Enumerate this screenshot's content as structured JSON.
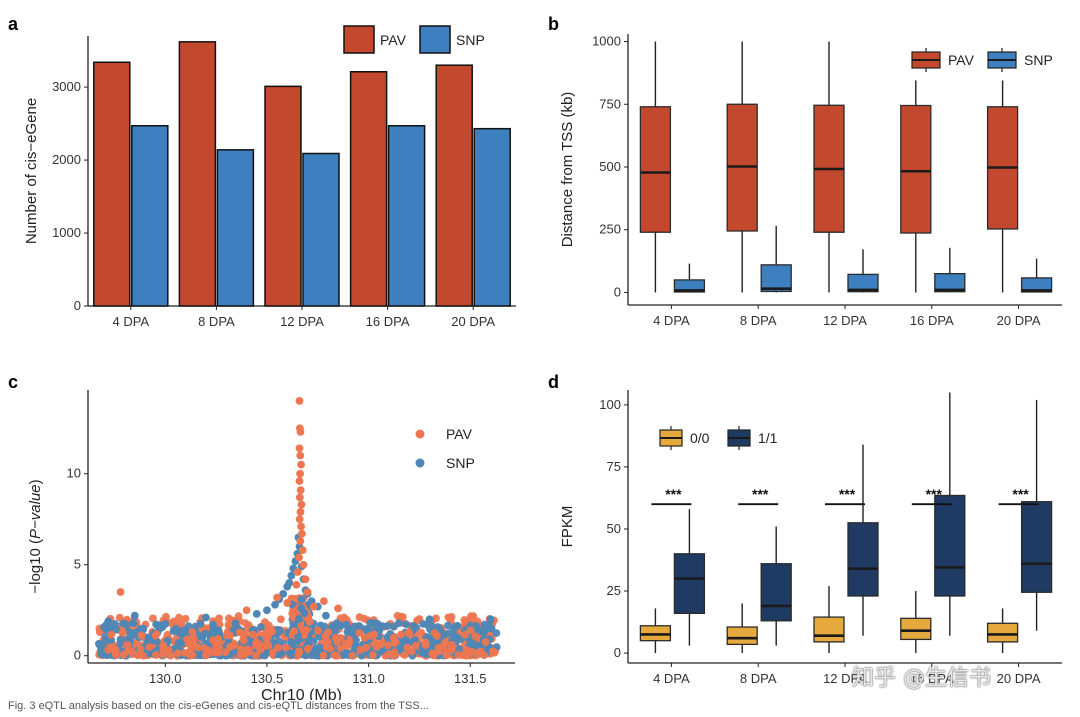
{
  "figure_caption": "Fig. 3  eQTL analysis based on the cis-eGenes and cis-eQTL distances from the TSS...",
  "watermark": "知乎 @生信书",
  "colors": {
    "pav": "#C2492E",
    "snp": "#3E7FBF",
    "genotype_00": "#E5A93D",
    "genotype_11": "#1F3A63",
    "pav_dot": "#EE7650",
    "snp_dot": "#4E86B5"
  },
  "chart_data": [
    {
      "panel": "a",
      "type": "bar",
      "categories": [
        "4 DPA",
        "8 DPA",
        "12 DPA",
        "16 DPA",
        "20 DPA"
      ],
      "series": [
        {
          "name": "PAV",
          "values": [
            3340,
            3620,
            3010,
            3210,
            3300
          ]
        },
        {
          "name": "SNP",
          "values": [
            2470,
            2140,
            2090,
            2470,
            2430
          ]
        }
      ],
      "xlabel": "",
      "ylabel": "Number of cis−eGene",
      "ylim": [
        0,
        3700
      ],
      "yticks": [
        0,
        1000,
        2000,
        3000
      ],
      "legend": "top-right"
    },
    {
      "panel": "b",
      "type": "box",
      "categories": [
        "4 DPA",
        "8 DPA",
        "12 DPA",
        "16 DPA",
        "20 DPA"
      ],
      "series": [
        {
          "name": "PAV",
          "boxes": [
            {
              "min": 0,
              "q1": 240,
              "median": 478,
              "q3": 740,
              "max": 1000
            },
            {
              "min": 0,
              "q1": 245,
              "median": 502,
              "q3": 750,
              "max": 1000
            },
            {
              "min": 0,
              "q1": 240,
              "median": 492,
              "q3": 746,
              "max": 1000
            },
            {
              "min": 0,
              "q1": 237,
              "median": 483,
              "q3": 745,
              "max": 845
            },
            {
              "min": 0,
              "q1": 253,
              "median": 498,
              "q3": 740,
              "max": 845
            }
          ]
        },
        {
          "name": "SNP",
          "boxes": [
            {
              "min": 0,
              "q1": 2,
              "median": 8,
              "q3": 50,
              "max": 115
            },
            {
              "min": 0,
              "q1": 4,
              "median": 15,
              "q3": 110,
              "max": 265
            },
            {
              "min": 0,
              "q1": 3,
              "median": 10,
              "q3": 72,
              "max": 172
            },
            {
              "min": 0,
              "q1": 3,
              "median": 10,
              "q3": 75,
              "max": 178
            },
            {
              "min": 0,
              "q1": 2,
              "median": 8,
              "q3": 58,
              "max": 135
            }
          ]
        }
      ],
      "ylabel": "Distance from TSS (kb)",
      "ylim": [
        -50,
        1030
      ],
      "yticks": [
        0,
        250,
        500,
        750,
        1000
      ],
      "legend": "top-right"
    },
    {
      "panel": "c",
      "type": "scatter",
      "xlabel": "Chr10 (Mb)",
      "ylabel_main": "−log10 (",
      "ylabel_italic": "P−value",
      "ylabel_end": ")",
      "xlim": [
        129.62,
        131.72
      ],
      "ylim": [
        -0.4,
        14.6
      ],
      "xticks": [
        130.0,
        130.5,
        131.0,
        131.5
      ],
      "yticks": [
        0,
        5,
        10
      ],
      "series": [
        {
          "name": "PAV",
          "note": "background cloud spans 129.65–131.65 Mb at −log10 P ≈ 0–2.2",
          "peak_points": [
            [
              130.66,
              14.0
            ],
            [
              130.662,
              12.5
            ],
            [
              130.665,
              12.3
            ],
            [
              130.66,
              11.4
            ],
            [
              130.664,
              11.0
            ],
            [
              130.668,
              10.5
            ],
            [
              130.663,
              10.0
            ],
            [
              130.66,
              9.6
            ],
            [
              130.666,
              9.1
            ],
            [
              130.662,
              8.7
            ],
            [
              130.67,
              8.3
            ],
            [
              130.665,
              7.9
            ],
            [
              130.661,
              7.5
            ],
            [
              130.668,
              7.1
            ],
            [
              130.672,
              6.7
            ],
            [
              130.664,
              6.3
            ],
            [
              130.676,
              5.8
            ],
            [
              130.658,
              5.4
            ],
            [
              130.68,
              5.0
            ],
            [
              130.652,
              4.6
            ],
            [
              130.69,
              4.2
            ],
            [
              130.645,
              3.9
            ],
            [
              130.7,
              3.5
            ],
            [
              130.78,
              3.0
            ],
            [
              129.78,
              3.5
            ],
            [
              130.55,
              3.2
            ],
            [
              130.6,
              2.9
            ],
            [
              130.73,
              2.7
            ],
            [
              130.85,
              2.6
            ],
            [
              130.4,
              2.5
            ]
          ]
        },
        {
          "name": "SNP",
          "note": "background cloud spans 129.65–131.65 Mb at −log10 P ≈ 0–1.8",
          "peak_points": [
            [
              130.655,
              6.5
            ],
            [
              130.66,
              6.0
            ],
            [
              130.65,
              5.6
            ],
            [
              130.64,
              5.2
            ],
            [
              130.63,
              4.8
            ],
            [
              130.67,
              4.9
            ],
            [
              130.62,
              4.4
            ],
            [
              130.68,
              4.2
            ],
            [
              130.61,
              4.0
            ],
            [
              130.6,
              3.8
            ],
            [
              130.69,
              3.6
            ],
            [
              130.58,
              3.4
            ],
            [
              130.7,
              3.4
            ],
            [
              130.56,
              3.1
            ],
            [
              130.72,
              3.0
            ],
            [
              130.54,
              2.8
            ],
            [
              130.75,
              2.7
            ],
            [
              130.5,
              2.5
            ],
            [
              130.45,
              2.3
            ],
            [
              130.79,
              2.2
            ],
            [
              129.85,
              2.2
            ],
            [
              131.6,
              2.0
            ],
            [
              131.3,
              2.0
            ],
            [
              130.2,
              2.1
            ],
            [
              129.72,
              1.9
            ]
          ]
        }
      ],
      "legend": "top-right"
    },
    {
      "panel": "d",
      "type": "box",
      "categories": [
        "4 DPA",
        "8 DPA",
        "12 DPA",
        "16 DPA",
        "20 DPA"
      ],
      "series": [
        {
          "name": "0/0",
          "boxes": [
            {
              "min": 0,
              "q1": 5,
              "median": 7.5,
              "q3": 11,
              "max": 18
            },
            {
              "min": 0,
              "q1": 3.5,
              "median": 6,
              "q3": 10.5,
              "max": 20
            },
            {
              "min": 0,
              "q1": 4.5,
              "median": 7,
              "q3": 14.5,
              "max": 27
            },
            {
              "min": 0,
              "q1": 5.5,
              "median": 9,
              "q3": 14,
              "max": 25
            },
            {
              "min": 0,
              "q1": 4.5,
              "median": 7.5,
              "q3": 12,
              "max": 18
            }
          ]
        },
        {
          "name": "1/1",
          "boxes": [
            {
              "min": 3,
              "q1": 16,
              "median": 30,
              "q3": 40,
              "max": 58
            },
            {
              "min": 3,
              "q1": 13,
              "median": 19,
              "q3": 36,
              "max": 51
            },
            {
              "min": 7,
              "q1": 23,
              "median": 34,
              "q3": 52.5,
              "max": 84
            },
            {
              "min": 7,
              "q1": 23,
              "median": 34.5,
              "q3": 63.5,
              "max": 105
            },
            {
              "min": 9,
              "q1": 24.5,
              "median": 36,
              "q3": 61,
              "max": 102
            }
          ]
        }
      ],
      "significance": [
        "***",
        "***",
        "***",
        "***",
        "***"
      ],
      "ylabel": "FPKM",
      "ylim": [
        -4,
        106
      ],
      "yticks": [
        0,
        25,
        50,
        75,
        100
      ],
      "legend": "top-left"
    }
  ],
  "panel_labels": [
    "a",
    "b",
    "c",
    "d"
  ]
}
